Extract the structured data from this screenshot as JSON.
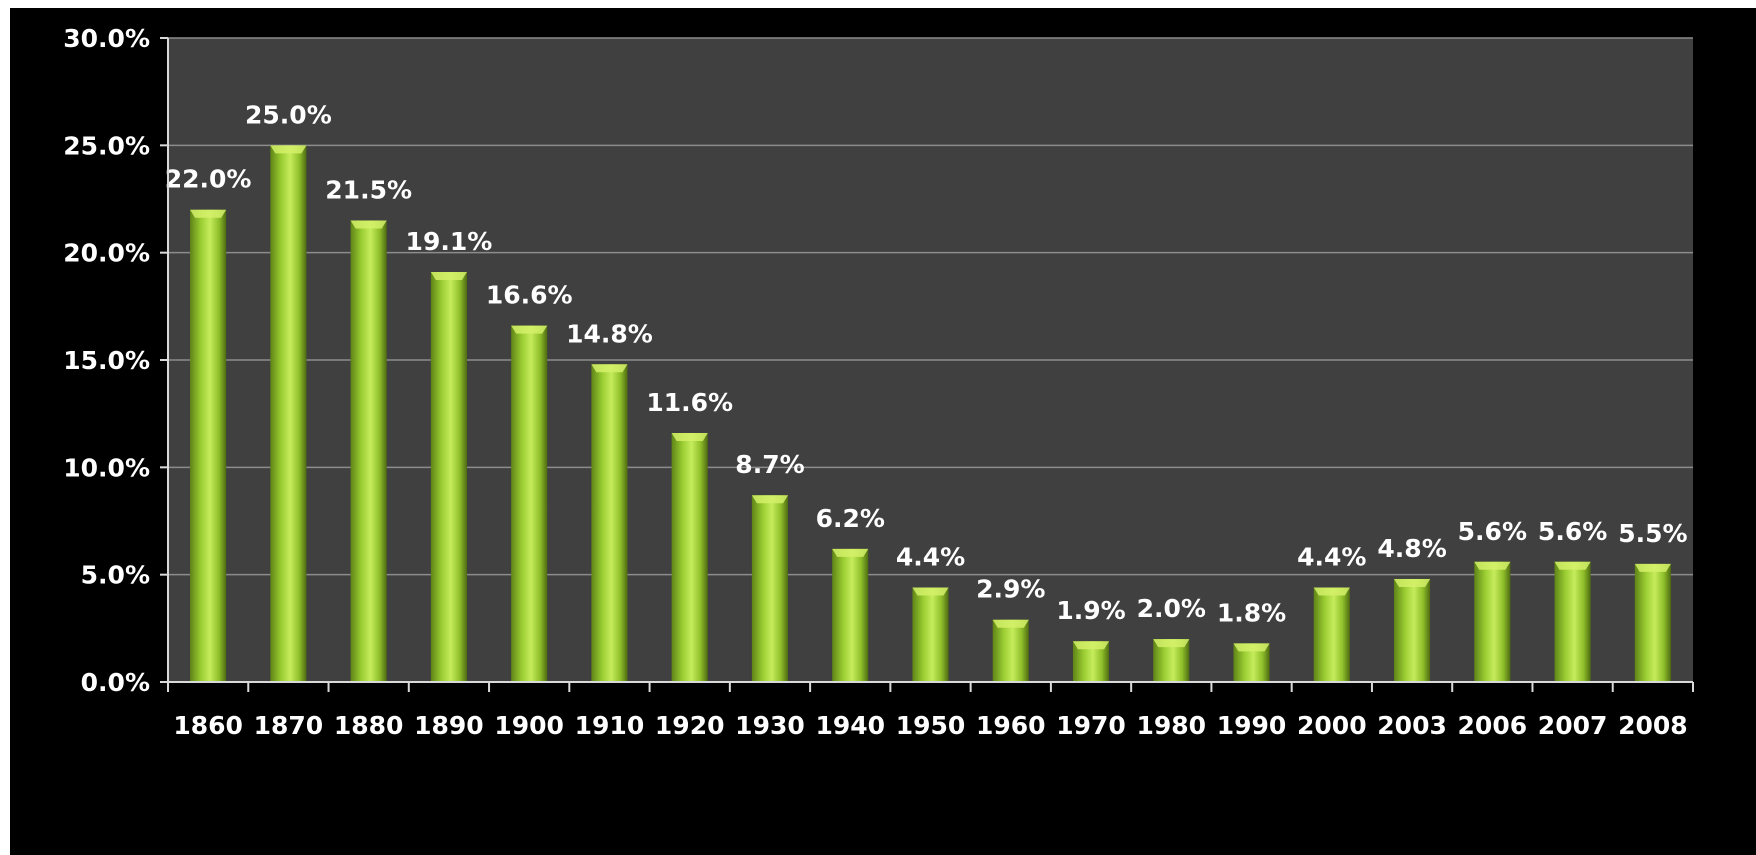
{
  "chart_data": {
    "type": "bar",
    "categories": [
      "1860",
      "1870",
      "1880",
      "1890",
      "1900",
      "1910",
      "1920",
      "1930",
      "1940",
      "1950",
      "1960",
      "1970",
      "1980",
      "1990",
      "2000",
      "2003",
      "2006",
      "2007",
      "2008"
    ],
    "values": [
      22.0,
      25.0,
      21.5,
      19.1,
      16.6,
      14.8,
      11.6,
      8.7,
      6.2,
      4.4,
      2.9,
      1.9,
      2.0,
      1.8,
      4.4,
      4.8,
      5.6,
      5.6,
      5.5
    ],
    "data_labels": [
      "22.0%",
      "25.0%",
      "21.5%",
      "19.1%",
      "16.6%",
      "14.8%",
      "11.6%",
      "8.7%",
      "6.2%",
      "4.4%",
      "2.9%",
      "1.9%",
      "2.0%",
      "1.8%",
      "4.4%",
      "4.8%",
      "5.6%",
      "5.6%",
      "5.5%"
    ],
    "yticks": [
      0,
      5,
      10,
      15,
      20,
      25,
      30
    ],
    "ytick_labels": [
      "0.0%",
      "5.0%",
      "10.0%",
      "15.0%",
      "20.0%",
      "25.0%",
      "30.0%"
    ],
    "ylim": [
      0,
      30
    ],
    "grid": true,
    "legend": "none",
    "colors": {
      "background": "#000000",
      "plot_area": "#404040",
      "bar": "#9acd32",
      "bar_highlight": "#d4f06a",
      "bar_shadow": "#4e6b12",
      "gridline": "#8c8c8c",
      "text": "#ffffff"
    }
  }
}
